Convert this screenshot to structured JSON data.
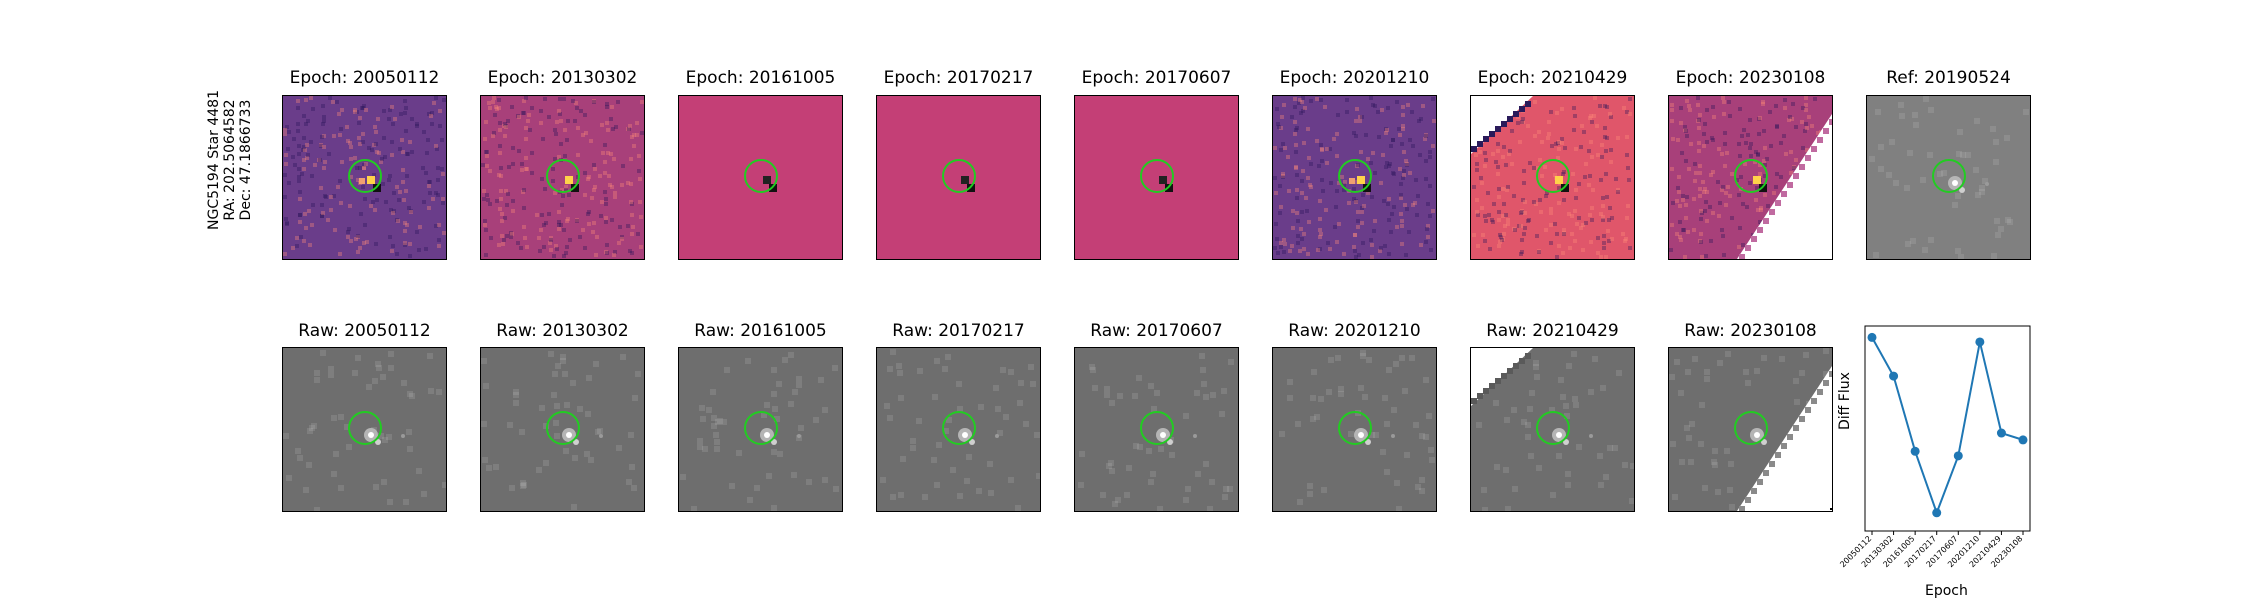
{
  "side_label": {
    "line1": "NGC5194 Star 4481",
    "line2": "RA: 202.5064582",
    "line3": "Dec: 47.1866733"
  },
  "top_row": [
    {
      "title": "Epoch: 20050112",
      "style": "diff-dark",
      "mask": "none"
    },
    {
      "title": "Epoch: 20130302",
      "style": "diff-mid",
      "mask": "none"
    },
    {
      "title": "Epoch: 20161005",
      "style": "diff-flat",
      "mask": "none"
    },
    {
      "title": "Epoch: 20170217",
      "style": "diff-flat",
      "mask": "none"
    },
    {
      "title": "Epoch: 20170607",
      "style": "diff-flat",
      "mask": "none"
    },
    {
      "title": "Epoch: 20201210",
      "style": "diff-dark",
      "mask": "none"
    },
    {
      "title": "Epoch: 20210429",
      "style": "diff-bright",
      "mask": "top-left"
    },
    {
      "title": "Epoch: 20230108",
      "style": "diff-mid",
      "mask": "bottom-right"
    },
    {
      "title": "Ref: 20190524",
      "style": "ref",
      "mask": "none"
    }
  ],
  "bottom_row": [
    {
      "title": "Raw: 20050112",
      "mask": "none"
    },
    {
      "title": "Raw: 20130302",
      "mask": "none"
    },
    {
      "title": "Raw: 20161005",
      "mask": "none"
    },
    {
      "title": "Raw: 20170217",
      "mask": "none"
    },
    {
      "title": "Raw: 20170607",
      "mask": "none"
    },
    {
      "title": "Raw: 20201210",
      "mask": "none"
    },
    {
      "title": "Raw: 20210429",
      "mask": "top-left"
    },
    {
      "title": "Raw: 20230108",
      "mask": "bottom-right"
    }
  ],
  "colors": {
    "circle": "#22cc22",
    "line": "#1f77b4",
    "diff_dark": "#6a3d8a",
    "diff_mid": "#a8407a",
    "diff_flat": "#c43f76",
    "diff_bright": "#e0566a",
    "ref_bg": "#808080",
    "raw_bg": "#6e6e6e"
  },
  "chart_data": {
    "type": "line",
    "xlabel": "Epoch",
    "ylabel": "Diff Flux",
    "categories": [
      "20050112",
      "20130302",
      "20161005",
      "20170217",
      "20170607",
      "20201210",
      "20210429",
      "20230108"
    ],
    "values": [
      0.95,
      0.78,
      0.45,
      0.18,
      0.43,
      0.93,
      0.53,
      0.5
    ],
    "ylim": [
      0.1,
      1.0
    ],
    "grid": false,
    "yticks_visible": false
  }
}
